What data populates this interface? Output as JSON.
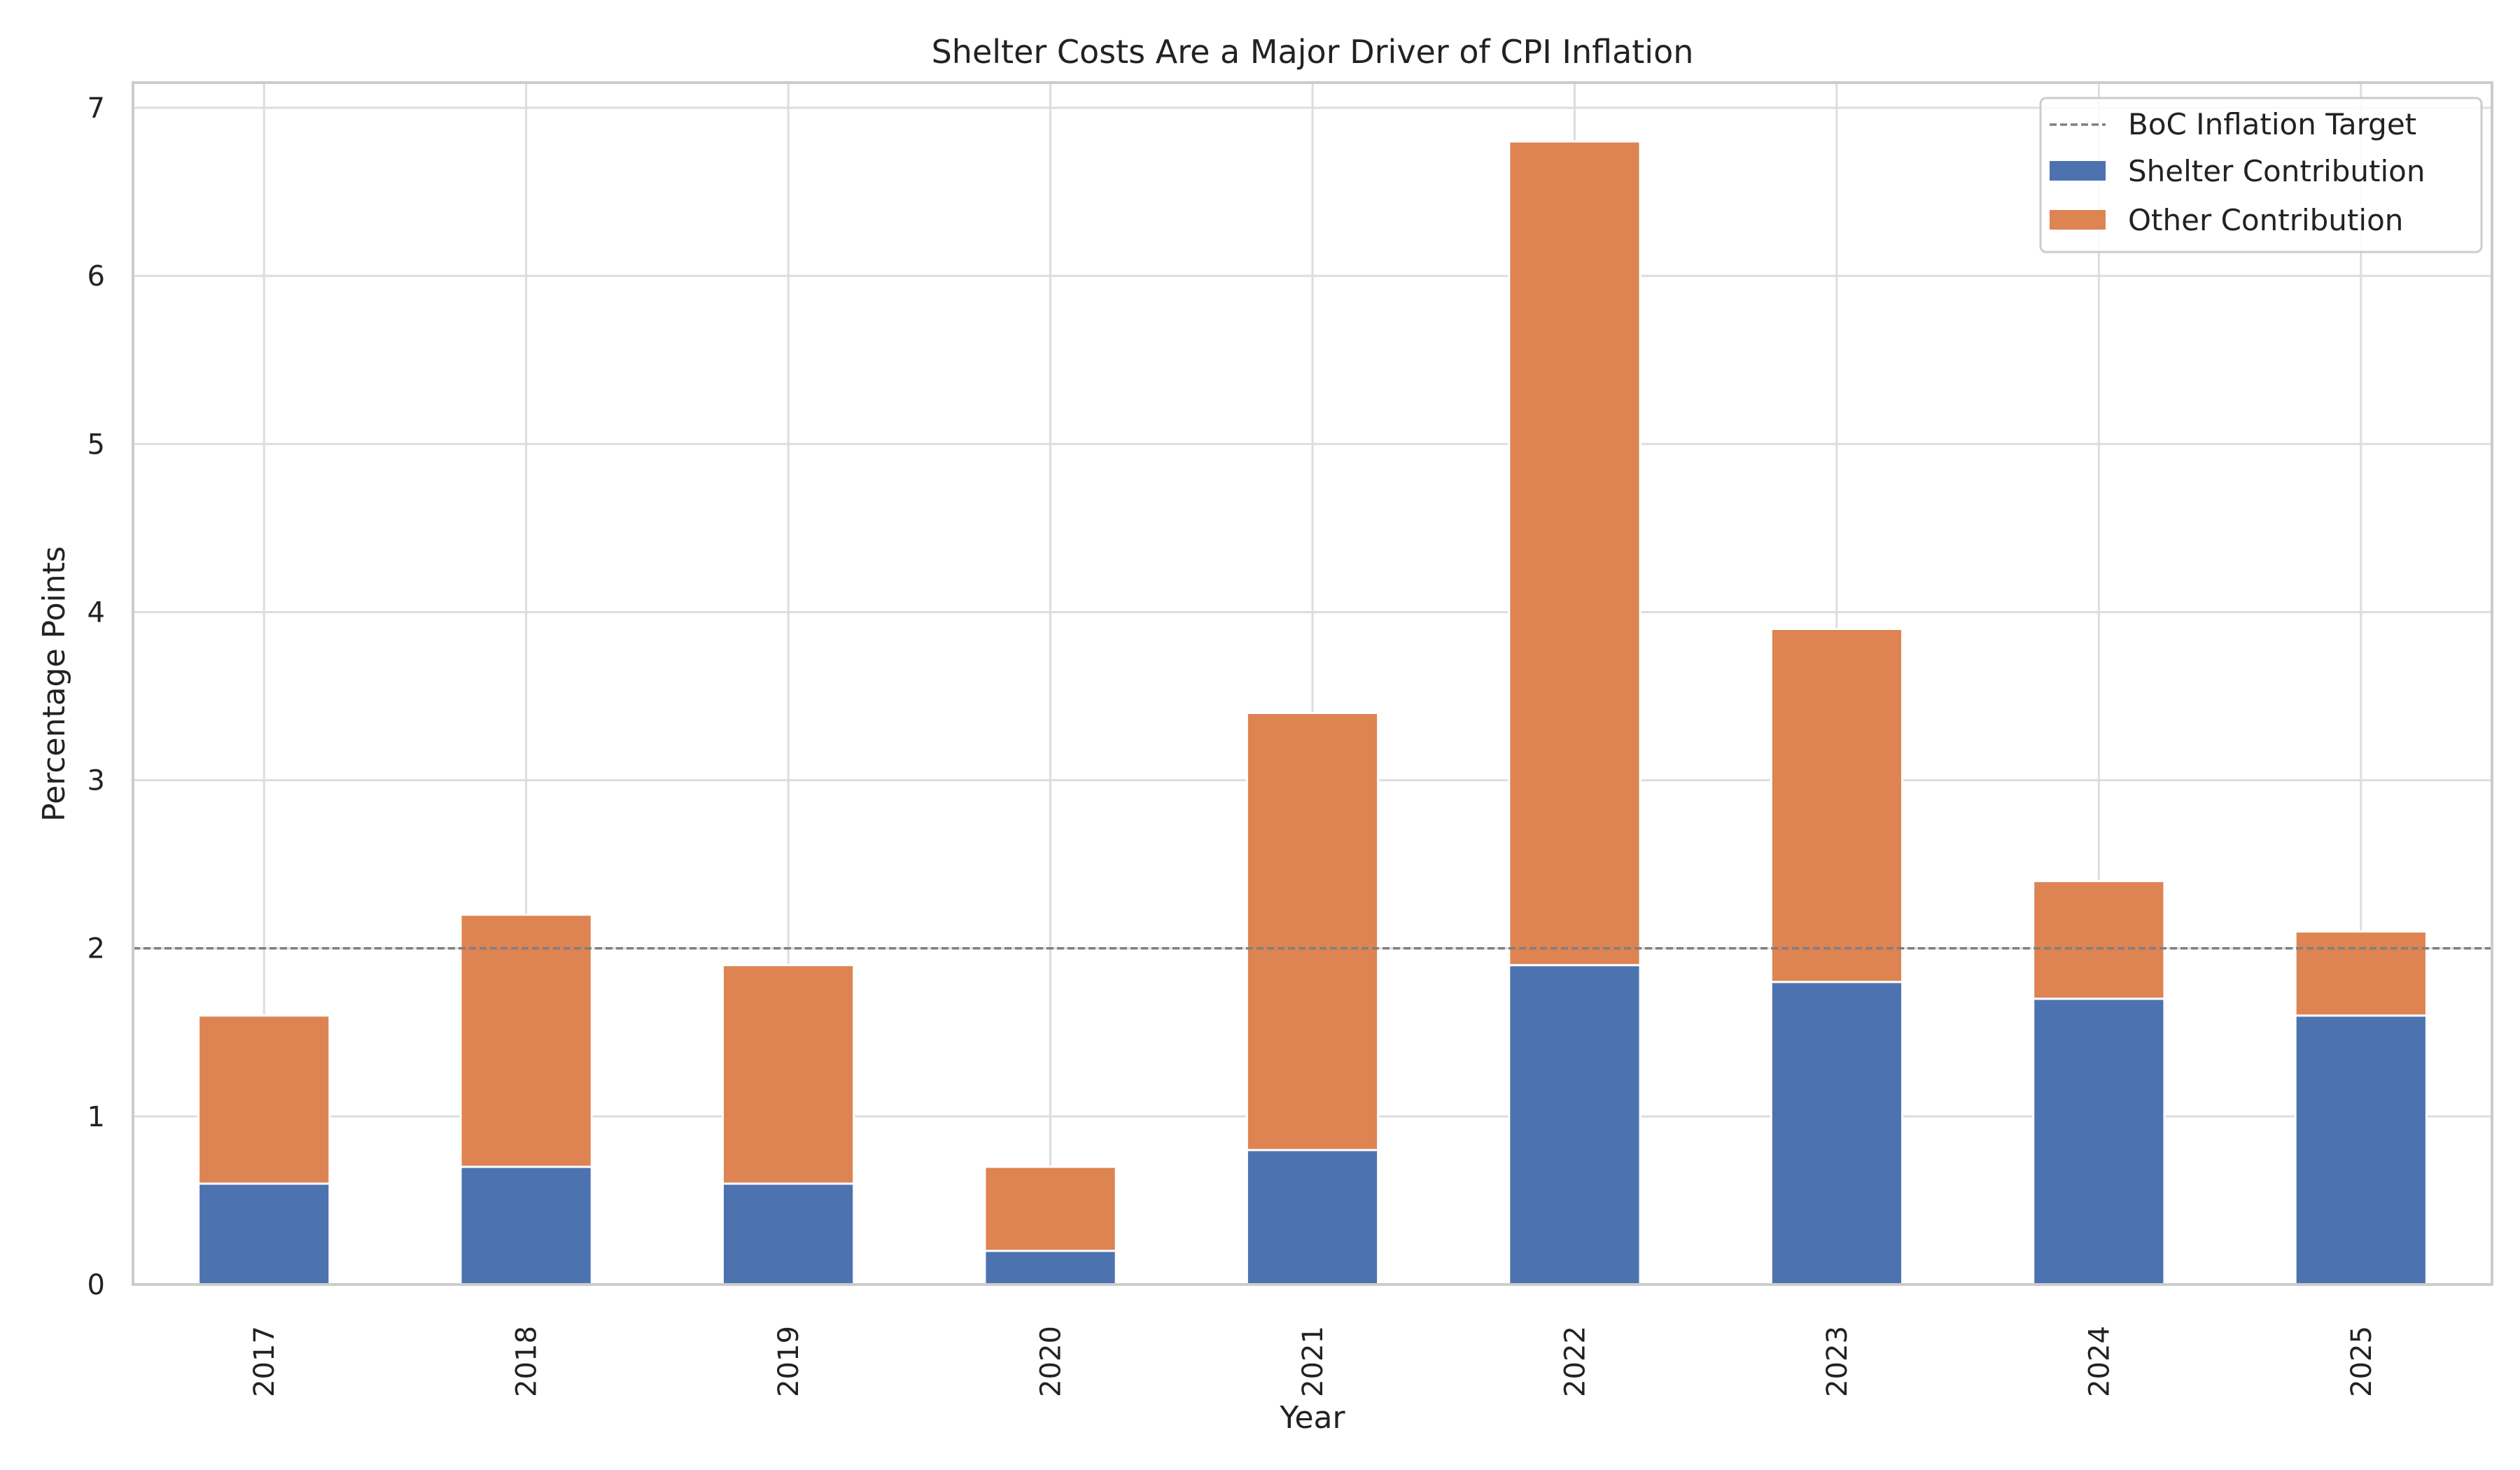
{
  "chart_data": {
    "type": "bar",
    "stacked": true,
    "title": "Shelter Costs Are a Major Driver of CPI Inflation",
    "xlabel": "Year",
    "ylabel": "Percentage Points",
    "categories": [
      "2017",
      "2018",
      "2019",
      "2020",
      "2021",
      "2022",
      "2023",
      "2024",
      "2025"
    ],
    "series": [
      {
        "name": "Shelter Contribution",
        "color": "#4c72b0",
        "values": [
          0.6,
          0.7,
          0.6,
          0.2,
          0.8,
          1.9,
          1.8,
          1.7,
          1.6
        ]
      },
      {
        "name": "Other Contribution",
        "color": "#dd8452",
        "values": [
          1.0,
          1.5,
          1.3,
          0.5,
          2.6,
          4.9,
          2.1,
          0.7,
          0.5
        ]
      }
    ],
    "reference_line": {
      "name": "BoC Inflation Target",
      "value": 2,
      "color": "#808080",
      "style": "dashed"
    },
    "ylim": [
      0,
      7.15
    ],
    "yticks": [
      0,
      1,
      2,
      3,
      4,
      5,
      6,
      7
    ],
    "grid": true,
    "legend_position": "top-right"
  }
}
